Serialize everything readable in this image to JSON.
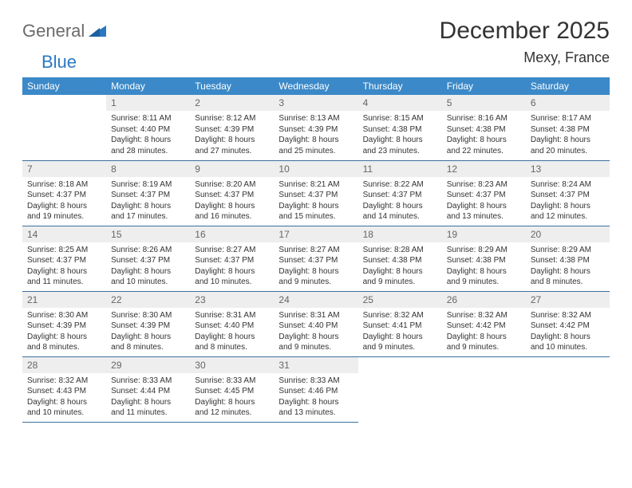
{
  "logo": {
    "part1": "General",
    "part2": "Blue"
  },
  "title": "December 2025",
  "location": "Mexy, France",
  "colors": {
    "header_bg": "#3b89c8",
    "header_text": "#ffffff",
    "daynum_bg": "#eeeeee",
    "daynum_text": "#666666",
    "row_border": "#3b6fa0",
    "logo_gray": "#6b6b6b",
    "logo_blue": "#2a79c0"
  },
  "weekdays": [
    "Sunday",
    "Monday",
    "Tuesday",
    "Wednesday",
    "Thursday",
    "Friday",
    "Saturday"
  ],
  "weeks": [
    [
      {
        "day": "",
        "sunrise": "",
        "sunset": "",
        "daylight": ""
      },
      {
        "day": "1",
        "sunrise": "Sunrise: 8:11 AM",
        "sunset": "Sunset: 4:40 PM",
        "daylight": "Daylight: 8 hours and 28 minutes."
      },
      {
        "day": "2",
        "sunrise": "Sunrise: 8:12 AM",
        "sunset": "Sunset: 4:39 PM",
        "daylight": "Daylight: 8 hours and 27 minutes."
      },
      {
        "day": "3",
        "sunrise": "Sunrise: 8:13 AM",
        "sunset": "Sunset: 4:39 PM",
        "daylight": "Daylight: 8 hours and 25 minutes."
      },
      {
        "day": "4",
        "sunrise": "Sunrise: 8:15 AM",
        "sunset": "Sunset: 4:38 PM",
        "daylight": "Daylight: 8 hours and 23 minutes."
      },
      {
        "day": "5",
        "sunrise": "Sunrise: 8:16 AM",
        "sunset": "Sunset: 4:38 PM",
        "daylight": "Daylight: 8 hours and 22 minutes."
      },
      {
        "day": "6",
        "sunrise": "Sunrise: 8:17 AM",
        "sunset": "Sunset: 4:38 PM",
        "daylight": "Daylight: 8 hours and 20 minutes."
      }
    ],
    [
      {
        "day": "7",
        "sunrise": "Sunrise: 8:18 AM",
        "sunset": "Sunset: 4:37 PM",
        "daylight": "Daylight: 8 hours and 19 minutes."
      },
      {
        "day": "8",
        "sunrise": "Sunrise: 8:19 AM",
        "sunset": "Sunset: 4:37 PM",
        "daylight": "Daylight: 8 hours and 17 minutes."
      },
      {
        "day": "9",
        "sunrise": "Sunrise: 8:20 AM",
        "sunset": "Sunset: 4:37 PM",
        "daylight": "Daylight: 8 hours and 16 minutes."
      },
      {
        "day": "10",
        "sunrise": "Sunrise: 8:21 AM",
        "sunset": "Sunset: 4:37 PM",
        "daylight": "Daylight: 8 hours and 15 minutes."
      },
      {
        "day": "11",
        "sunrise": "Sunrise: 8:22 AM",
        "sunset": "Sunset: 4:37 PM",
        "daylight": "Daylight: 8 hours and 14 minutes."
      },
      {
        "day": "12",
        "sunrise": "Sunrise: 8:23 AM",
        "sunset": "Sunset: 4:37 PM",
        "daylight": "Daylight: 8 hours and 13 minutes."
      },
      {
        "day": "13",
        "sunrise": "Sunrise: 8:24 AM",
        "sunset": "Sunset: 4:37 PM",
        "daylight": "Daylight: 8 hours and 12 minutes."
      }
    ],
    [
      {
        "day": "14",
        "sunrise": "Sunrise: 8:25 AM",
        "sunset": "Sunset: 4:37 PM",
        "daylight": "Daylight: 8 hours and 11 minutes."
      },
      {
        "day": "15",
        "sunrise": "Sunrise: 8:26 AM",
        "sunset": "Sunset: 4:37 PM",
        "daylight": "Daylight: 8 hours and 10 minutes."
      },
      {
        "day": "16",
        "sunrise": "Sunrise: 8:27 AM",
        "sunset": "Sunset: 4:37 PM",
        "daylight": "Daylight: 8 hours and 10 minutes."
      },
      {
        "day": "17",
        "sunrise": "Sunrise: 8:27 AM",
        "sunset": "Sunset: 4:37 PM",
        "daylight": "Daylight: 8 hours and 9 minutes."
      },
      {
        "day": "18",
        "sunrise": "Sunrise: 8:28 AM",
        "sunset": "Sunset: 4:38 PM",
        "daylight": "Daylight: 8 hours and 9 minutes."
      },
      {
        "day": "19",
        "sunrise": "Sunrise: 8:29 AM",
        "sunset": "Sunset: 4:38 PM",
        "daylight": "Daylight: 8 hours and 9 minutes."
      },
      {
        "day": "20",
        "sunrise": "Sunrise: 8:29 AM",
        "sunset": "Sunset: 4:38 PM",
        "daylight": "Daylight: 8 hours and 8 minutes."
      }
    ],
    [
      {
        "day": "21",
        "sunrise": "Sunrise: 8:30 AM",
        "sunset": "Sunset: 4:39 PM",
        "daylight": "Daylight: 8 hours and 8 minutes."
      },
      {
        "day": "22",
        "sunrise": "Sunrise: 8:30 AM",
        "sunset": "Sunset: 4:39 PM",
        "daylight": "Daylight: 8 hours and 8 minutes."
      },
      {
        "day": "23",
        "sunrise": "Sunrise: 8:31 AM",
        "sunset": "Sunset: 4:40 PM",
        "daylight": "Daylight: 8 hours and 8 minutes."
      },
      {
        "day": "24",
        "sunrise": "Sunrise: 8:31 AM",
        "sunset": "Sunset: 4:40 PM",
        "daylight": "Daylight: 8 hours and 9 minutes."
      },
      {
        "day": "25",
        "sunrise": "Sunrise: 8:32 AM",
        "sunset": "Sunset: 4:41 PM",
        "daylight": "Daylight: 8 hours and 9 minutes."
      },
      {
        "day": "26",
        "sunrise": "Sunrise: 8:32 AM",
        "sunset": "Sunset: 4:42 PM",
        "daylight": "Daylight: 8 hours and 9 minutes."
      },
      {
        "day": "27",
        "sunrise": "Sunrise: 8:32 AM",
        "sunset": "Sunset: 4:42 PM",
        "daylight": "Daylight: 8 hours and 10 minutes."
      }
    ],
    [
      {
        "day": "28",
        "sunrise": "Sunrise: 8:32 AM",
        "sunset": "Sunset: 4:43 PM",
        "daylight": "Daylight: 8 hours and 10 minutes."
      },
      {
        "day": "29",
        "sunrise": "Sunrise: 8:33 AM",
        "sunset": "Sunset: 4:44 PM",
        "daylight": "Daylight: 8 hours and 11 minutes."
      },
      {
        "day": "30",
        "sunrise": "Sunrise: 8:33 AM",
        "sunset": "Sunset: 4:45 PM",
        "daylight": "Daylight: 8 hours and 12 minutes."
      },
      {
        "day": "31",
        "sunrise": "Sunrise: 8:33 AM",
        "sunset": "Sunset: 4:46 PM",
        "daylight": "Daylight: 8 hours and 13 minutes."
      },
      {
        "day": "",
        "sunrise": "",
        "sunset": "",
        "daylight": ""
      },
      {
        "day": "",
        "sunrise": "",
        "sunset": "",
        "daylight": ""
      },
      {
        "day": "",
        "sunrise": "",
        "sunset": "",
        "daylight": ""
      }
    ]
  ]
}
